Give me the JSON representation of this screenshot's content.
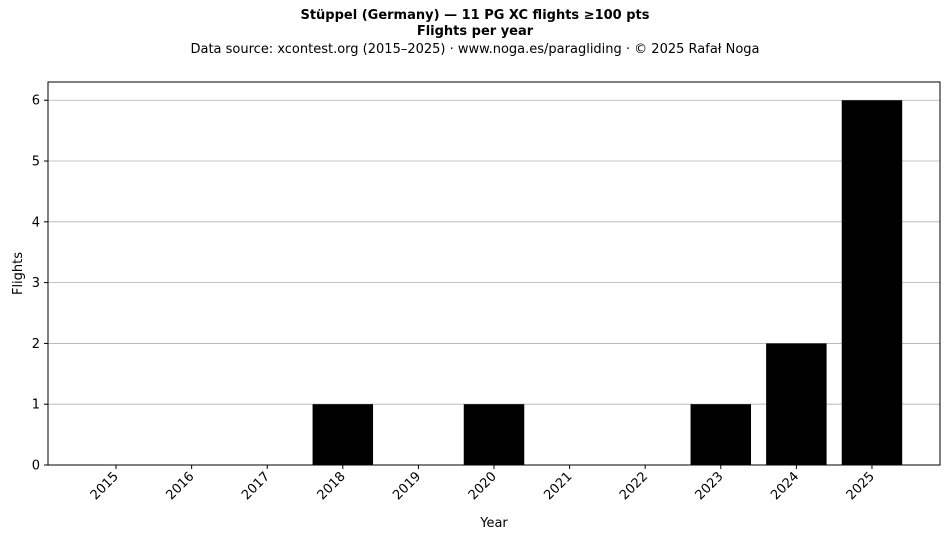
{
  "titles": {
    "title": "Stüppel (Germany)  —  11 PG XC flights ≥100 pts",
    "subtitle": "Flights per year",
    "source": "Data source: xcontest.org (2015–2025)  ·  www.noga.es/paragliding  ·  © 2025 Rafał Noga"
  },
  "chart_data": {
    "type": "bar",
    "title": "Stüppel (Germany)  —  11 PG XC flights ≥100 pts",
    "subtitle": "Flights per year",
    "xlabel": "Year",
    "ylabel": "Flights",
    "categories": [
      "2015",
      "2016",
      "2017",
      "2018",
      "2019",
      "2020",
      "2021",
      "2022",
      "2023",
      "2024",
      "2025"
    ],
    "values": [
      0,
      0,
      0,
      1,
      0,
      1,
      0,
      0,
      1,
      2,
      6
    ],
    "ylim": [
      0,
      6.3
    ],
    "yticks": [
      0,
      1,
      2,
      3,
      4,
      5,
      6
    ],
    "grid": "horizontal",
    "bar_color": "#000000",
    "grid_color": "#b0b0b0"
  }
}
